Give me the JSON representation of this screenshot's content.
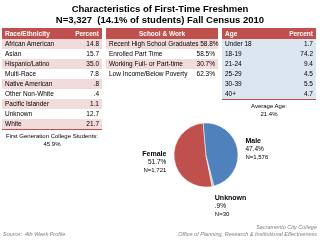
{
  "chart_data": [
    {
      "type": "pie",
      "title": "Characteristics of First-Time Freshmen",
      "subtitle": "N=3,327  (14.1% of students) Fall Census 2010",
      "categories": [
        "Female",
        "Unknown",
        "Male"
      ],
      "values": [
        51.7,
        0.9,
        47.4
      ],
      "value_labels": [
        "51.7%",
        ".9%",
        "47.4%"
      ],
      "annotations": [
        "N=1,721",
        "N=30",
        "N=1,576"
      ],
      "colors": [
        "#c0504d",
        "#c4bd97",
        "#4f81bd"
      ],
      "data_labels": true,
      "source": [
        "Source:  4th Week Profile",
        "Sacramento City College\nOffice of Planning, Research & Institutional Effectiveness"
      ]
    },
    {
      "type": "table",
      "columns": [
        "Race/Ethnicity",
        "Percent"
      ],
      "categories": [
        "African American",
        "Asian",
        "Hispanic/Latino",
        "Multi-Race",
        "Native American",
        "Other Non-White",
        "Pacific Islander",
        "Unknown",
        "White"
      ],
      "value_labels": [
        "14.8",
        "15.7",
        "35.0",
        "7.8",
        ".8",
        ".4",
        "1.1",
        "12.7",
        "21.7"
      ],
      "annotations": [
        "First Generation College Students:\n45.9%"
      ],
      "color": "#c0504d",
      "colors": [
        "#f2dcdb",
        "#ffffff",
        "#f2dcdb",
        "#ffffff",
        "#f2dcdb",
        "#ffffff",
        "#f2dcdb",
        "#ffffff",
        "#f2dcdb"
      ]
    },
    {
      "type": "table",
      "columns": [
        "School & Work"
      ],
      "categories": [
        "Recent High School Graduates",
        "Enrolled Part Time",
        "Working Full- or Part-time",
        "Low Income/Below Poverty"
      ],
      "value_labels": [
        "58.8%",
        "58.5%",
        "30.7%",
        "62.3%"
      ],
      "color": "#c0504d",
      "colors": [
        "#f2dcdb",
        "#ffffff",
        "#f2dcdb",
        "#ffffff"
      ]
    },
    {
      "type": "table",
      "columns": [
        "Age",
        "Percent"
      ],
      "categories": [
        "Under 18",
        "18-19",
        "21-24",
        "25-29",
        "30-39",
        "40+"
      ],
      "value_labels": [
        "1.7",
        "74.2",
        "9.4",
        "4.5",
        "5.5",
        "4.7"
      ],
      "annotations": [
        "Average Age:\n21.4%"
      ],
      "color": "#c0504d",
      "colors": [
        "#dce6f1",
        "#dce6f1",
        "#dce6f1",
        "#dce6f1",
        "#dce6f1",
        "#dce6f1"
      ]
    }
  ]
}
